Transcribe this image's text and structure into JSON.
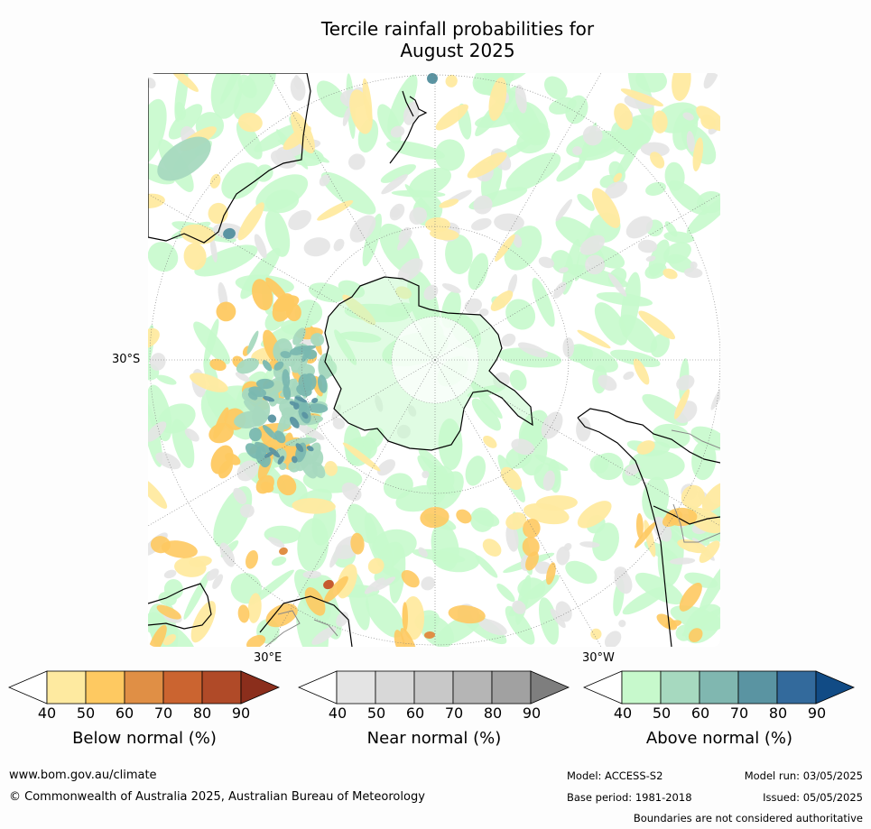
{
  "title_line1": "Tercile rainfall probabilities for",
  "title_line2": "August 2025",
  "map": {
    "lat_label": "30°S",
    "lon_label_east": "30°E",
    "lon_label_west": "30°W",
    "colors": {
      "background": "#ffffff",
      "green_light": "#c7f9cc",
      "green_mid": "#a6d9bf",
      "teal": "#7ab8b0",
      "blue": "#5a94a2",
      "grey": "#e4e4e4",
      "yellow": "#ffeaa0",
      "orange": "#fec961",
      "dark_orange": "#e08f45",
      "red": "#c65b2f",
      "coast": "#000000"
    }
  },
  "legends": [
    {
      "name": "Below normal (%)",
      "ticks": [
        "40",
        "50",
        "60",
        "70",
        "80",
        "90"
      ],
      "colors": [
        "#ffffff",
        "#feeaa0",
        "#fec961",
        "#e08f45",
        "#cb6430",
        "#b04a28",
        "#8b2e1c"
      ]
    },
    {
      "name": "Near normal (%)",
      "ticks": [
        "40",
        "50",
        "60",
        "70",
        "80",
        "90"
      ],
      "colors": [
        "#ffffff",
        "#e4e4e4",
        "#d8d8d8",
        "#c8c8c8",
        "#b5b5b5",
        "#a1a1a1",
        "#7e7e7e"
      ]
    },
    {
      "name": "Above normal (%)",
      "ticks": [
        "40",
        "50",
        "60",
        "70",
        "80",
        "90"
      ],
      "colors": [
        "#ffffff",
        "#c7f9cc",
        "#a6d9bf",
        "#80b7b0",
        "#5a94a2",
        "#336a9c",
        "#114b85"
      ]
    }
  ],
  "footer": {
    "website": "www.bom.gov.au/climate",
    "copyright": "© Commonwealth of Australia 2025, Australian Bureau of Meteorology",
    "model": "Model: ACCESS-S2",
    "base_period": "Base period: 1981-2018",
    "model_run": "Model run: 03/05/2025",
    "issued": "Issued: 05/05/2025",
    "disclaimer": "Boundaries are not considered authoritative"
  }
}
